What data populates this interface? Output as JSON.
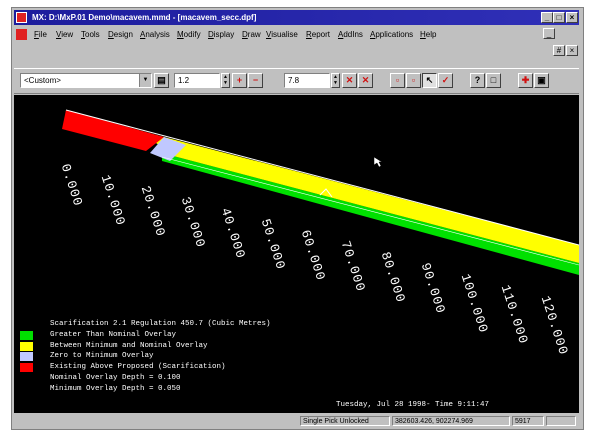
{
  "titlebar": {
    "title": "MX: D:\\MxP.01 Demo\\macavem.mmd - [macavem_secc.dpf]",
    "buttons": [
      "_",
      "□",
      "×"
    ]
  },
  "menubar": {
    "items": [
      "File",
      "View",
      "Tools",
      "Design",
      "Analysis",
      "Modify",
      "Display",
      "Draw",
      "Visualise",
      "Report",
      "AddIns",
      "Applications",
      "Help"
    ],
    "doc_buttons": [
      "_",
      "#",
      "×"
    ]
  },
  "toolbar": {
    "combo_value": "<Custom>",
    "spin1_value": "1.2",
    "spin2_value": "7.8"
  },
  "drawing": {
    "chainages": [
      "0.000",
      "10.000",
      "20.000",
      "30.000",
      "40.000",
      "50.000",
      "60.000",
      "70.000",
      "80.000",
      "90.000",
      "100.000",
      "110.000",
      "120.000"
    ],
    "legend_title": "Scarification 2.1 Regulation 450.7 (Cubic Metres)",
    "legend": [
      {
        "color": "#00e000",
        "label": "Greater Than Nominal Overlay"
      },
      {
        "color": "#ffff00",
        "label": "Between Minimum and Nominal Overlay"
      },
      {
        "color": "#c0c8ff",
        "label": "Zero to Minimum Overlay"
      },
      {
        "color": "#ff0000",
        "label": "Existing Above Proposed (Scarification)"
      }
    ],
    "nominal_text": "Nominal Overlay Depth = 0.100",
    "minimum_text": "Minimum Overlay Depth = 0.050",
    "timestamp": "Tuesday, Jul 28 1998- Time 9:11:47"
  },
  "statusbar": {
    "mode": "Single Pick  Unlocked",
    "coords": "382603.426, 902274.969",
    "value": "5917"
  }
}
